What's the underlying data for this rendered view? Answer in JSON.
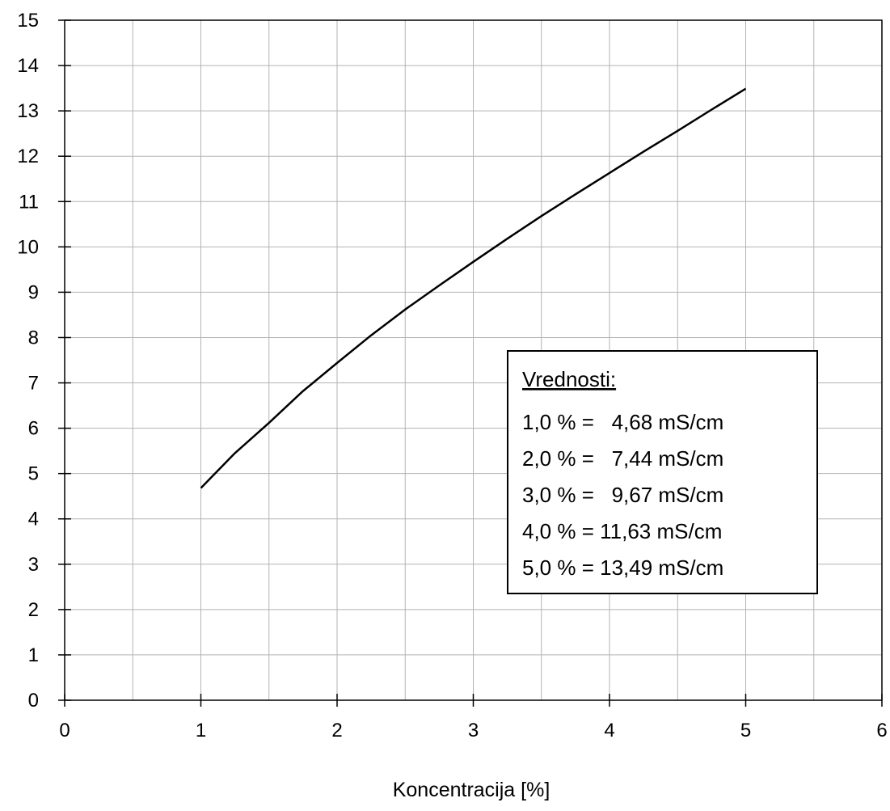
{
  "chart_data": {
    "type": "line",
    "title": "",
    "xlabel": "Koncentracija [%]",
    "ylabel": "",
    "xlim": [
      0,
      6
    ],
    "ylim": [
      0,
      15
    ],
    "x_ticks": [
      "0",
      "1",
      "2",
      "3",
      "4",
      "5",
      "6"
    ],
    "y_ticks": [
      "0",
      "1",
      "2",
      "3",
      "4",
      "5",
      "6",
      "7",
      "8",
      "9",
      "10",
      "11",
      "12",
      "13",
      "14",
      "15"
    ],
    "grid": true,
    "series": [
      {
        "x": [
          1.0,
          1.25,
          1.5,
          1.75,
          2.0,
          2.25,
          2.5,
          2.75,
          3.0,
          3.25,
          3.5,
          3.75,
          4.0,
          4.25,
          4.5,
          4.75,
          5.0
        ],
        "y": [
          4.68,
          5.45,
          6.12,
          6.82,
          7.44,
          8.05,
          8.62,
          9.15,
          9.67,
          10.18,
          10.68,
          11.16,
          11.63,
          12.1,
          12.56,
          13.03,
          13.49
        ]
      }
    ],
    "legend": {
      "title": "Vrednosti:",
      "entries": [
        "1,0 % =   4,68 mS/cm",
        "2,0 % =   7,44 mS/cm",
        "3,0 % =   9,67 mS/cm",
        "4,0 % = 11,63 mS/cm",
        "5,0 % = 13,49 mS/cm"
      ],
      "placement": "right"
    },
    "line_color": "#000000",
    "grid_color": "#b3b3b3"
  }
}
